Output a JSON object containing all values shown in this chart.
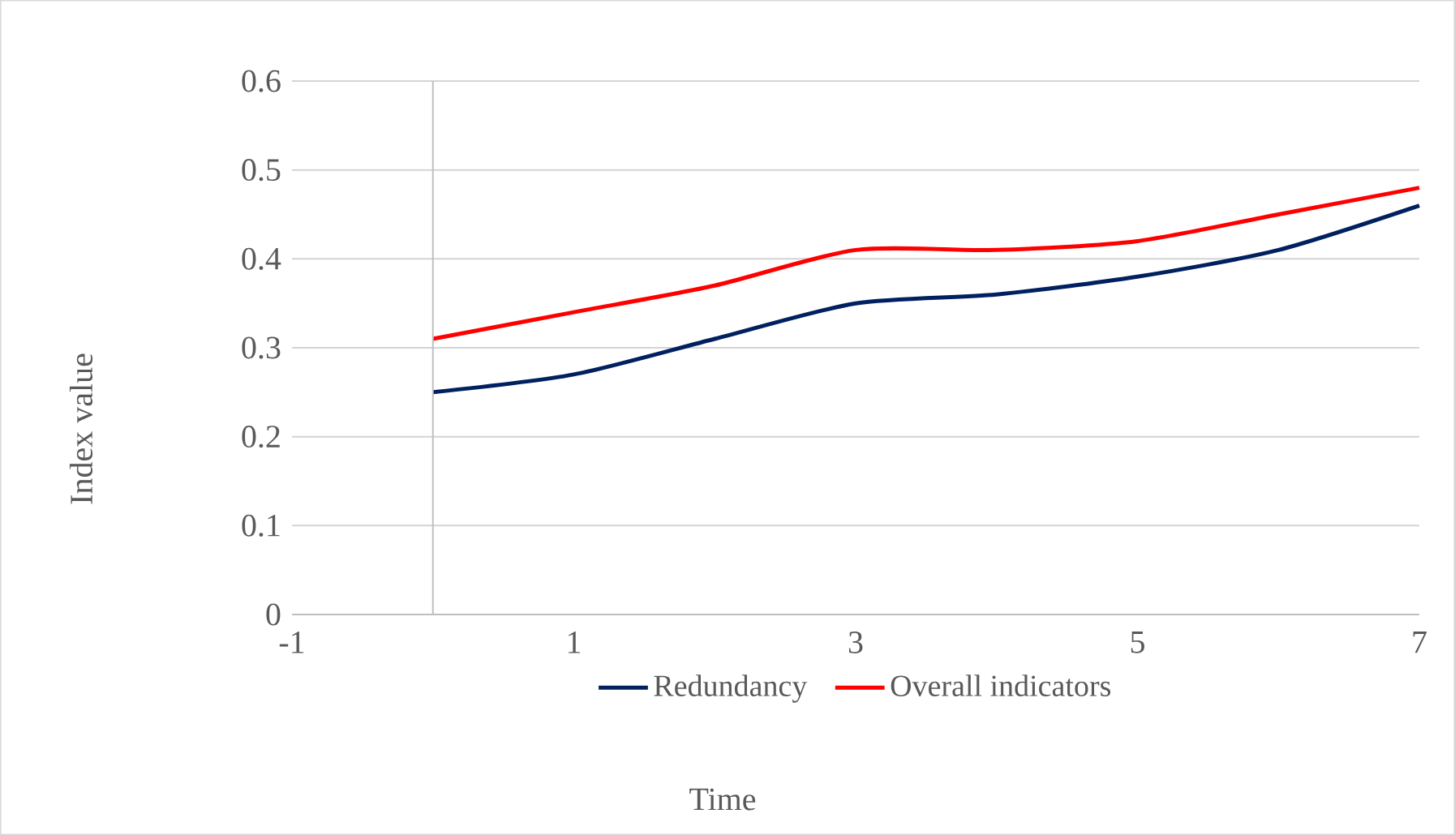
{
  "chart_data": {
    "type": "line",
    "xlabel": "Time",
    "ylabel": "Index value",
    "x": [
      0,
      1,
      2,
      3,
      4,
      5,
      6,
      7
    ],
    "series": [
      {
        "name": "Redundancy",
        "color": "#002060",
        "values": [
          0.25,
          0.27,
          0.31,
          0.35,
          0.36,
          0.38,
          0.41,
          0.46
        ]
      },
      {
        "name": "Overall indicators",
        "color": "#ff0000",
        "values": [
          0.31,
          0.34,
          0.37,
          0.41,
          0.41,
          0.42,
          0.45,
          0.48
        ]
      }
    ],
    "xlim": [
      -1,
      7
    ],
    "xticks": [
      -1,
      1,
      3,
      5,
      7
    ],
    "ylim": [
      0,
      0.6
    ],
    "yticks": [
      0,
      0.1,
      0.2,
      0.3,
      0.4,
      0.5,
      0.6
    ],
    "grid": "y",
    "legend": "bottom",
    "marker": "none",
    "line_style": "solid"
  }
}
